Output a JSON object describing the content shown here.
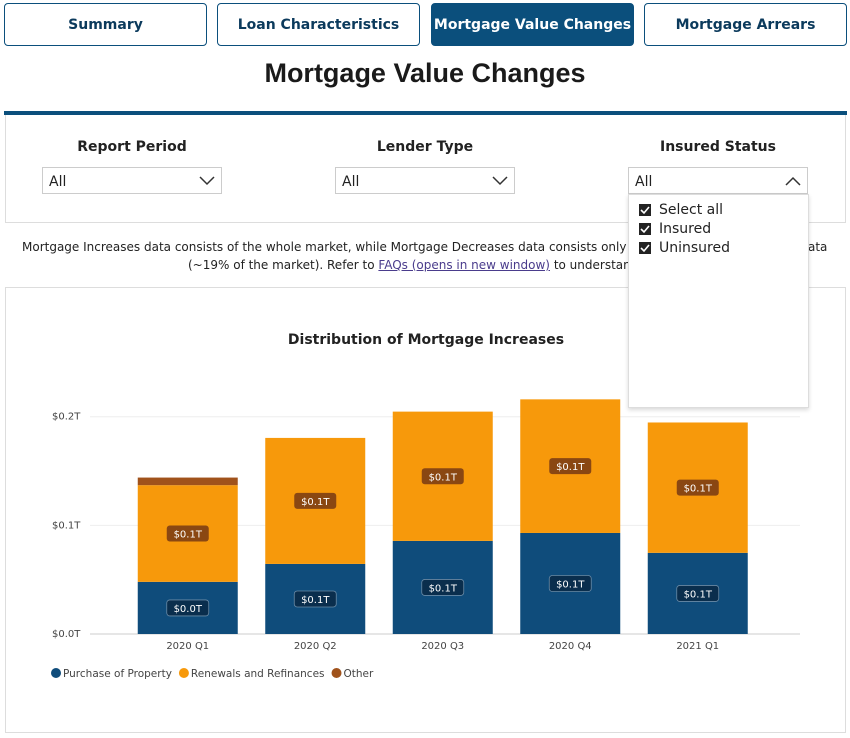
{
  "tabs": [
    {
      "label": "Summary",
      "active": false
    },
    {
      "label": "Loan Characteristics",
      "active": false
    },
    {
      "label": "Mortgage Value Changes",
      "active": true
    },
    {
      "label": "Mortgage Arrears",
      "active": false
    }
  ],
  "page_title": "Mortgage Value Changes",
  "filters": [
    {
      "label": "Report Period",
      "value": "All",
      "open": false
    },
    {
      "label": "Lender Type",
      "value": "All",
      "open": false
    },
    {
      "label": "Insured Status",
      "value": "All",
      "open": true,
      "options": [
        {
          "label": "Select all",
          "checked": true
        },
        {
          "label": "Insured",
          "checked": true
        },
        {
          "label": "Uninsured",
          "checked": true
        }
      ]
    }
  ],
  "notice": {
    "line1_left": "Mortgage Increases data consists of the whole market, while Mortgage Decreases data consists only of Survey c",
    "line1_right": "ata",
    "line2_before": "(~19% of the market). Refer to ",
    "link": "FAQs (opens in new window)",
    "line2_after": " to understand absen"
  },
  "chart_data": {
    "type": "stacked_bar",
    "title": "Distribution of Mortgage Increases",
    "categories": [
      "2020 Q1",
      "2020 Q2",
      "2020 Q3",
      "2020 Q4",
      "2021 Q1"
    ],
    "series": [
      {
        "name": "Purchase of Property",
        "color": "#0f4c7b",
        "values": [
          0.048,
          0.0645,
          0.0857,
          0.093,
          0.0747
        ],
        "value_labels": [
          "$0.0T",
          "$0.1T",
          "$0.1T",
          "$0.1T",
          "$0.1T"
        ]
      },
      {
        "name": "Renewals and Refinances",
        "color": "#f7990b",
        "values": [
          0.089,
          0.116,
          0.119,
          0.123,
          0.12
        ],
        "value_labels": [
          "$0.1T",
          "$0.1T",
          "$0.1T",
          "$0.1T",
          "$0.1T"
        ]
      },
      {
        "name": "Other",
        "color": "#a0521b",
        "values": [
          0.007,
          0,
          0,
          0,
          0
        ]
      }
    ],
    "ylim": [
      0,
      0.22
    ],
    "yticks": [
      {
        "value": 0,
        "label": "$0.0T"
      },
      {
        "value": 0.1,
        "label": "$0.1T"
      },
      {
        "value": 0.2,
        "label": "$0.2T"
      }
    ],
    "grid": true,
    "legend": "bottom-left"
  }
}
